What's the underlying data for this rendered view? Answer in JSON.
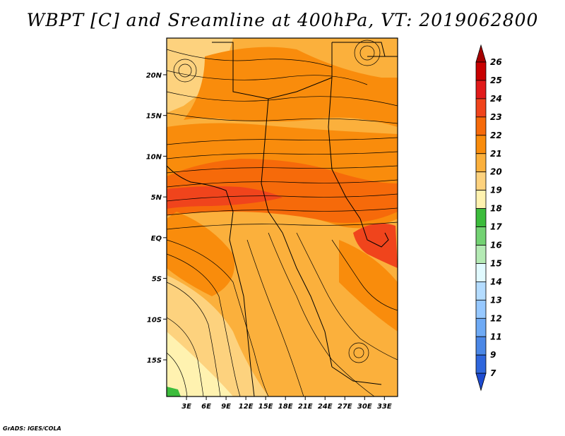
{
  "title": "WBPT [C] and Sreamline at 400hPa, VT: 2019062800",
  "credit": "GrADS: IGES/COLA",
  "map": {
    "lat_labels": [
      "20N",
      "15N",
      "10N",
      "5N",
      "EQ",
      "5S",
      "10S",
      "15S"
    ],
    "lat_values": [
      20,
      15,
      10,
      5,
      0,
      -5,
      -10,
      -15
    ],
    "lon_labels": [
      "3E",
      "6E",
      "9E",
      "12E",
      "15E",
      "18E",
      "21E",
      "24E",
      "27E",
      "30E",
      "33E"
    ],
    "lon_values": [
      3,
      6,
      9,
      12,
      15,
      18,
      21,
      24,
      27,
      30,
      33
    ],
    "lon_range": [
      0,
      35
    ],
    "lat_range": [
      -19.5,
      24.5
    ],
    "field": "WBPT [C]",
    "level": "400hPa"
  },
  "colorbar": {
    "labels": [
      "26",
      "25",
      "24",
      "23",
      "22",
      "21",
      "20",
      "19",
      "18",
      "17",
      "16",
      "15",
      "14",
      "13",
      "12",
      "11",
      "9",
      "7"
    ],
    "colors": [
      "#a50000",
      "#c80000",
      "#e11a1a",
      "#f0441c",
      "#f66a0a",
      "#f98c0c",
      "#fbb03c",
      "#fdd27e",
      "#fff2b0",
      "#3cbc3c",
      "#73d273",
      "#b4eab4",
      "#e1faff",
      "#b4dcff",
      "#96c8ff",
      "#6eaaf5",
      "#4b87e6",
      "#2f66dc",
      "#1e4bd0"
    ],
    "top_color": "#a50000",
    "bottom_color": "#1e4bd0"
  }
}
